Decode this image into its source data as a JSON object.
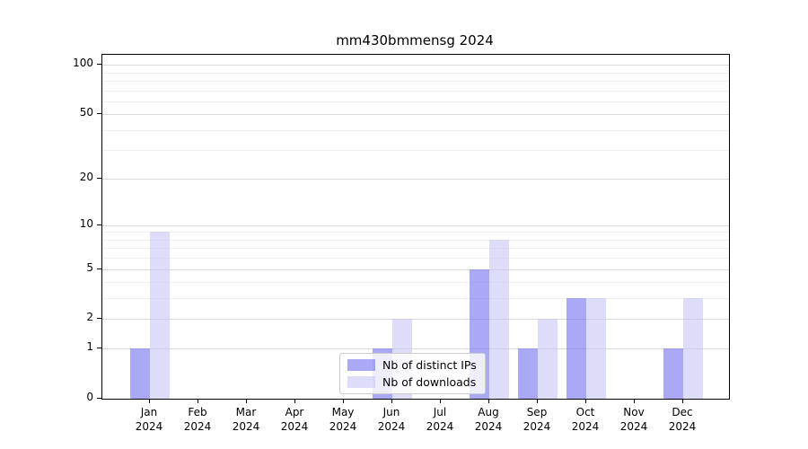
{
  "chart_data": {
    "type": "bar",
    "title": "mm430bmmensg 2024",
    "categories": [
      "Jan",
      "Feb",
      "Mar",
      "Apr",
      "May",
      "Jun",
      "Jul",
      "Aug",
      "Sep",
      "Oct",
      "Nov",
      "Dec"
    ],
    "category_year_label": "2024",
    "series": [
      {
        "name": "Nb of distinct IPs",
        "color": "#7070EE",
        "opacity": 0.6,
        "values": [
          1,
          0,
          0,
          0,
          0,
          1,
          0,
          5,
          1,
          3,
          0,
          1
        ]
      },
      {
        "name": "Nb of downloads",
        "color": "#C6C6F5",
        "opacity": 0.6,
        "values": [
          9,
          0,
          0,
          0,
          0,
          2,
          0,
          8,
          2,
          3,
          0,
          3
        ]
      }
    ],
    "yscale": "log1p",
    "ylim": [
      0,
      115
    ],
    "yticks": [
      0,
      1,
      2,
      5,
      10,
      20,
      50,
      100
    ],
    "yticks_minor": [
      3,
      4,
      6,
      7,
      8,
      9,
      30,
      40,
      60,
      70,
      80,
      90
    ],
    "grid": true,
    "legend_position": "lower center"
  },
  "colors": {
    "grid_major": "#d9d9d9",
    "grid_minor": "#efefef",
    "axis": "#000000",
    "legend_border": "#cccccc"
  }
}
